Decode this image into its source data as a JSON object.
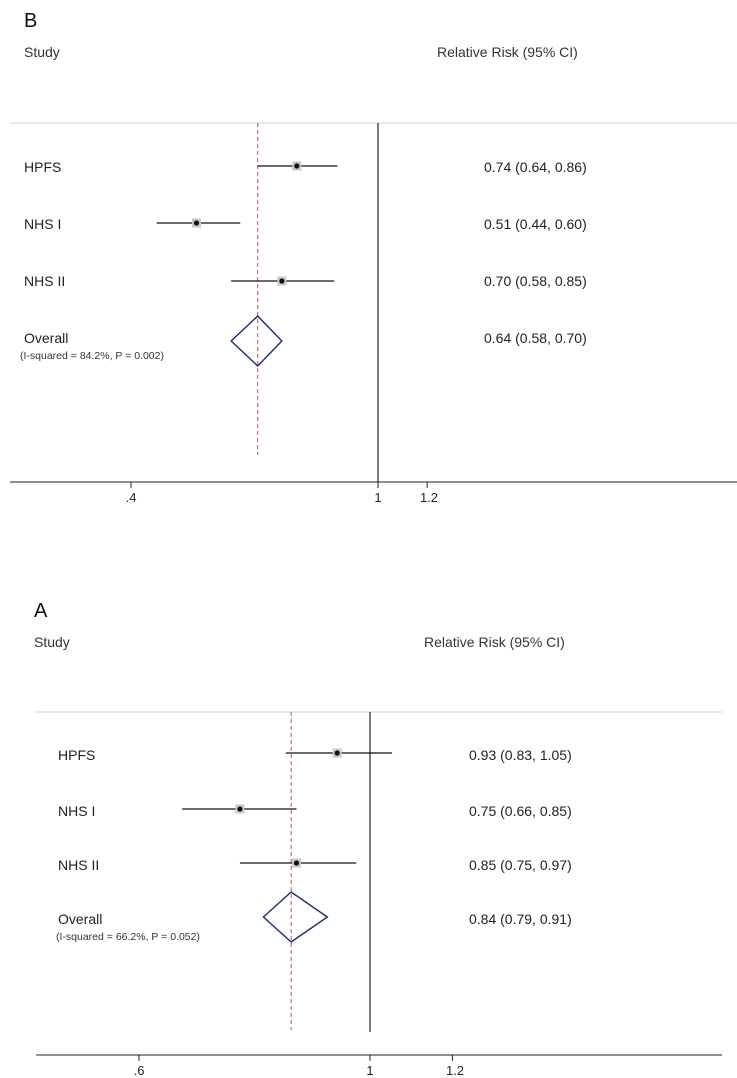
{
  "chart_data": [
    {
      "type": "forest",
      "panel_label": "B",
      "study_header": "Study",
      "effect_header": "Relative Risk (95% CI)",
      "null_line": 1,
      "overall_line": 0.64,
      "x_ticks": [
        0.4,
        1,
        1.2
      ],
      "x_tick_labels": [
        ".4",
        "1",
        "1.2"
      ],
      "xlim": [
        0.33,
        2.3
      ],
      "studies": [
        {
          "name": "HPFS",
          "rr": 0.74,
          "lo": 0.64,
          "hi": 0.86,
          "label": "0.74 (0.64, 0.86)"
        },
        {
          "name": "NHS I",
          "rr": 0.51,
          "lo": 0.44,
          "hi": 0.6,
          "label": "0.51 (0.44, 0.60)"
        },
        {
          "name": "NHS II",
          "rr": 0.7,
          "lo": 0.58,
          "hi": 0.85,
          "label": "0.70 (0.58, 0.85)"
        }
      ],
      "overall": {
        "name": "Overall",
        "rr": 0.64,
        "lo": 0.58,
        "hi": 0.7,
        "label": "0.64 (0.58, 0.70)",
        "heterogeneity": "(I-squared = 84.2%, P = 0.002)"
      }
    },
    {
      "type": "forest",
      "panel_label": "A",
      "study_header": "Study",
      "effect_header": "Relative Risk (95% CI)",
      "null_line": 1,
      "overall_line": 0.84,
      "x_ticks": [
        0.6,
        1,
        1.2
      ],
      "x_tick_labels": [
        ".6",
        "1",
        "1.2"
      ],
      "xlim": [
        0.55,
        2.3
      ],
      "studies": [
        {
          "name": "HPFS",
          "rr": 0.93,
          "lo": 0.83,
          "hi": 1.05,
          "label": "0.93 (0.83, 1.05)"
        },
        {
          "name": "NHS I",
          "rr": 0.75,
          "lo": 0.66,
          "hi": 0.85,
          "label": "0.75 (0.66, 0.85)"
        },
        {
          "name": "NHS II",
          "rr": 0.85,
          "lo": 0.75,
          "hi": 0.97,
          "label": "0.85 (0.75, 0.97)"
        }
      ],
      "overall": {
        "name": "Overall",
        "rr": 0.84,
        "lo": 0.79,
        "hi": 0.91,
        "label": "0.84 (0.79, 0.91)",
        "heterogeneity": "(I-squared = 66.2%, P = 0.052)"
      }
    }
  ]
}
